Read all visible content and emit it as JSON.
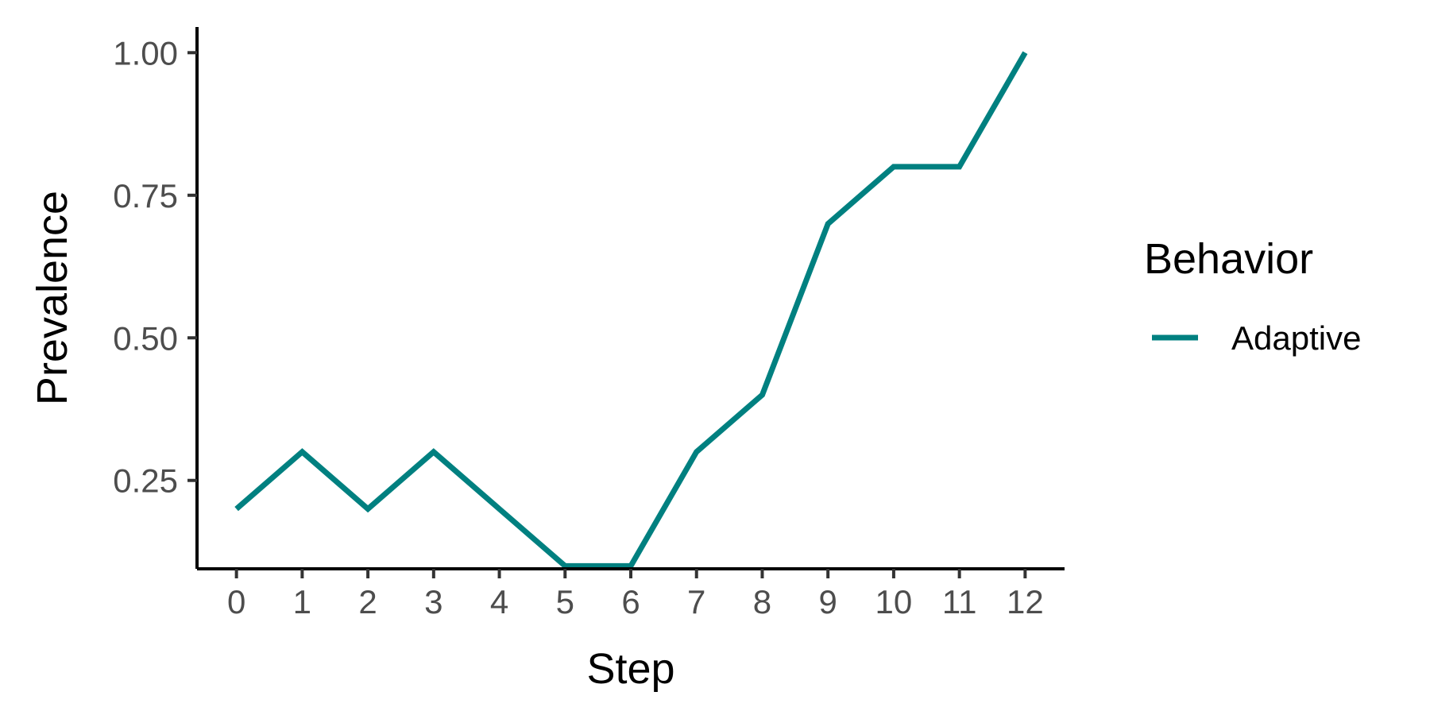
{
  "chart_data": {
    "type": "line",
    "x": [
      0,
      1,
      2,
      3,
      4,
      5,
      6,
      7,
      8,
      9,
      10,
      11,
      12
    ],
    "series": [
      {
        "name": "Adaptive",
        "color": "#008080",
        "values": [
          0.2,
          0.3,
          0.2,
          0.3,
          0.2,
          0.1,
          0.1,
          0.3,
          0.4,
          0.7,
          0.8,
          0.8,
          1.0
        ]
      }
    ],
    "xlabel": "Step",
    "ylabel": "Prevalence",
    "xlim": [
      -0.6,
      12.6
    ],
    "ylim": [
      0.095,
      1.045
    ],
    "xticks": [
      0,
      1,
      2,
      3,
      4,
      5,
      6,
      7,
      8,
      9,
      10,
      11,
      12
    ],
    "xtick_labels": [
      "0",
      "1",
      "2",
      "3",
      "4",
      "5",
      "6",
      "7",
      "8",
      "9",
      "10",
      "11",
      "12"
    ],
    "yticks": [
      0.25,
      0.5,
      0.75,
      1.0
    ],
    "ytick_labels": [
      "0.25",
      "0.50",
      "0.75",
      "1.00"
    ],
    "grid": false,
    "legend": {
      "title": "Behavior",
      "position": "right"
    }
  }
}
